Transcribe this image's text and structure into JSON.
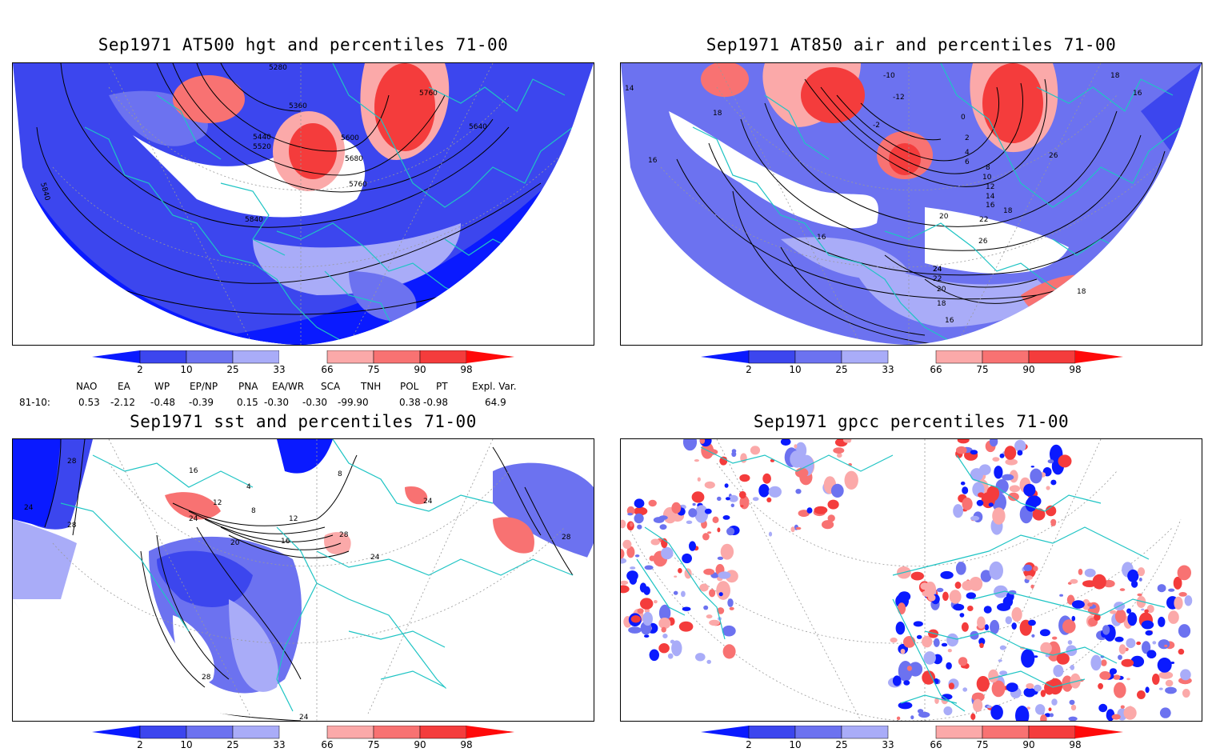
{
  "panels": [
    {
      "id": "z500",
      "title": "Sep1971 AT500 hgt and percentiles 71-00",
      "contour_labels": [
        "5280",
        "5360",
        "5440",
        "5520",
        "5600",
        "5680",
        "5760",
        "5760",
        "5640",
        "5840",
        "5840"
      ],
      "colorbar_ticks": [
        "2",
        "10",
        "25",
        "33",
        "66",
        "75",
        "90",
        "98"
      ]
    },
    {
      "id": "t850",
      "title": "Sep1971 AT850 air and percentiles 71-00",
      "contour_labels": [
        "-10",
        "-12",
        "-2",
        "0",
        "2",
        "4",
        "6",
        "8",
        "10",
        "12",
        "14",
        "16",
        "18",
        "20",
        "22",
        "24",
        "26",
        "26",
        "18",
        "16",
        "16",
        "14",
        "18",
        "16",
        "22",
        "24",
        "20",
        "18",
        "16",
        "18"
      ],
      "colorbar_ticks": [
        "2",
        "10",
        "25",
        "33",
        "66",
        "75",
        "90",
        "98"
      ]
    },
    {
      "id": "sst",
      "title": "Sep1971 sst and percentiles 71-00",
      "contour_labels": [
        "28",
        "24",
        "28",
        "16",
        "12",
        "8",
        "4",
        "8",
        "12",
        "16",
        "20",
        "24",
        "24",
        "24",
        "28",
        "28",
        "28",
        "24"
      ],
      "colorbar_ticks": [
        "2",
        "10",
        "25",
        "33",
        "66",
        "75",
        "90",
        "98"
      ]
    },
    {
      "id": "gpcc",
      "title": "Sep1971 gpcc percentiles 71-00",
      "contour_labels": [],
      "colorbar_ticks": [
        "2",
        "10",
        "25",
        "33",
        "66",
        "75",
        "90",
        "98"
      ]
    }
  ],
  "indices": {
    "headers": [
      "NAO",
      "EA",
      "WP",
      "EP/NP",
      "PNA",
      "EA/WR",
      "SCA",
      "TNH",
      "POL",
      "PT",
      "Expl. Var."
    ],
    "row_label": "81-10:",
    "values": [
      "0.53",
      "-2.12",
      "-0.48",
      "-0.39",
      "0.15",
      "-0.30",
      "-0.30",
      "-99.90",
      "0.38",
      "-0.98",
      "64.9"
    ]
  },
  "colors": {
    "coastline": "#1fc4c4",
    "blue_2": "#0a1aff",
    "blue_10": "#3c46ee",
    "blue_25": "#6c72f0",
    "blue_33": "#a9acf8",
    "red_66": "#fba9a9",
    "red_75": "#f87272",
    "red_90": "#f43c3c",
    "red_98": "#ff0a0a"
  }
}
